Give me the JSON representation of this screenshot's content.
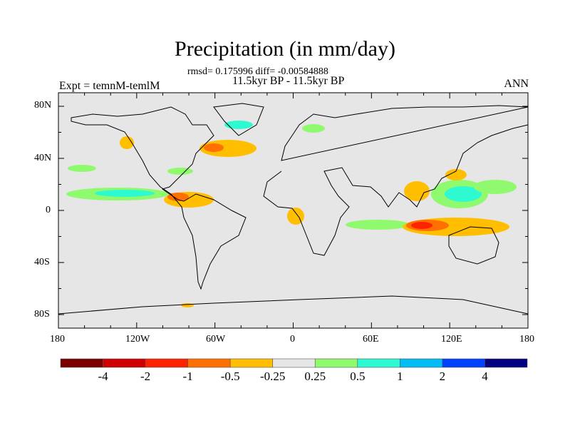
{
  "title": "Precipitation (in mm/day)",
  "stats": "rmsd= 0.175996 diff= -0.00584888",
  "period": "11.5kyr BP - 11.5kyr BP",
  "experiment": "Expt = temnM-temlM",
  "season": "ANN",
  "axes": {
    "lat_ticks": [
      "80N",
      "40N",
      "0",
      "40S",
      "80S"
    ],
    "lon_ticks": [
      "180",
      "120W",
      "60W",
      "0",
      "60E",
      "120E",
      "180"
    ]
  },
  "colorbar": {
    "colors": [
      "#7a0000",
      "#d00000",
      "#ff2200",
      "#ff7000",
      "#ffbe00",
      "#e6e6e6",
      "#90fa6e",
      "#2efad2",
      "#00bef5",
      "#0040ff",
      "#000080"
    ],
    "labels": [
      "-4",
      "-2",
      "-1",
      "-0.5",
      "-0.25",
      "0.25",
      "0.5",
      "1",
      "2",
      "4"
    ]
  },
  "colors": {
    "ocean_land_bg": "#e6e6e6",
    "coast": "#000000"
  }
}
